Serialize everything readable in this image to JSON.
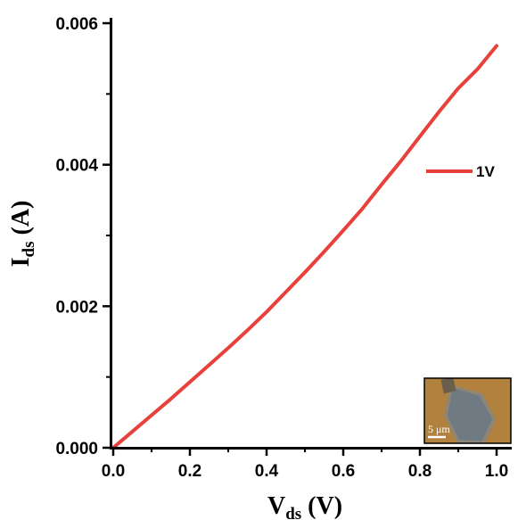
{
  "chart_data": {
    "type": "line",
    "xlabel": "V",
    "xlabel_sub": "ds",
    "xlabel_unit": " (V)",
    "ylabel": "I",
    "ylabel_sub": "ds",
    "ylabel_unit": " (A)",
    "xlim": [
      0.0,
      1.0
    ],
    "ylim": [
      0.0,
      0.006
    ],
    "x_ticks": [
      0.0,
      0.2,
      0.4,
      0.6,
      0.8,
      1.0
    ],
    "x_tick_labels": [
      "0.0",
      "0.2",
      "0.4",
      "0.6",
      "0.8",
      "1.0"
    ],
    "y_ticks": [
      0.0,
      0.002,
      0.004,
      0.006
    ],
    "y_tick_labels": [
      "0.000",
      "0.002",
      "0.004",
      "0.006"
    ],
    "grid": false,
    "legend_position": "right",
    "series": [
      {
        "name": "1V",
        "color": "#e8413c",
        "x": [
          0.0,
          0.05,
          0.1,
          0.15,
          0.2,
          0.25,
          0.3,
          0.35,
          0.4,
          0.45,
          0.5,
          0.55,
          0.6,
          0.65,
          0.7,
          0.75,
          0.8,
          0.85,
          0.9,
          0.95,
          1.0
        ],
        "y": [
          0.0,
          0.00023,
          0.00046,
          0.00069,
          0.00093,
          0.00117,
          0.00141,
          0.00166,
          0.00192,
          0.0022,
          0.00248,
          0.00277,
          0.00307,
          0.00338,
          0.00372,
          0.00405,
          0.0044,
          0.00475,
          0.00508,
          0.00535,
          0.00568
        ]
      }
    ],
    "inset": {
      "scale_label": "5 μm"
    }
  }
}
